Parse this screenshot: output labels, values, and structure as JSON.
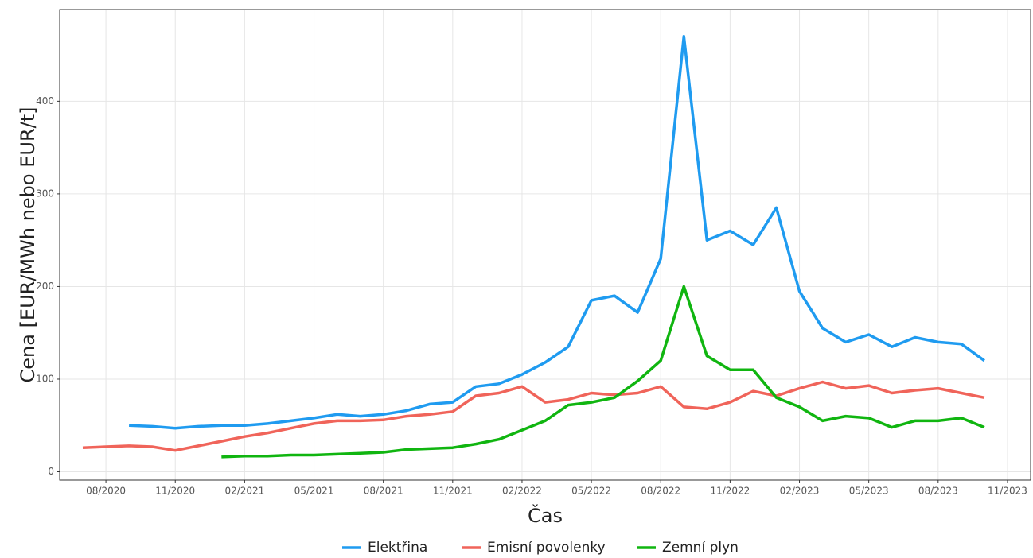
{
  "chart_data": {
    "type": "line",
    "xlabel": "Čas",
    "ylabel": "Cena [EUR/MWh nebo EUR/t]",
    "x": [
      "2020-07",
      "2020-08",
      "2020-09",
      "2020-10",
      "2020-11",
      "2020-12",
      "2021-01",
      "2021-02",
      "2021-03",
      "2021-04",
      "2021-05",
      "2021-06",
      "2021-07",
      "2021-08",
      "2021-09",
      "2021-10",
      "2021-11",
      "2021-12",
      "2022-01",
      "2022-02",
      "2022-03",
      "2022-04",
      "2022-05",
      "2022-06",
      "2022-07",
      "2022-08",
      "2022-09",
      "2022-10",
      "2022-11",
      "2022-12",
      "2023-01",
      "2023-02",
      "2023-03",
      "2023-04",
      "2023-05",
      "2023-06",
      "2023-07",
      "2023-08",
      "2023-09",
      "2023-10"
    ],
    "series": [
      {
        "name": "Elektřina",
        "color": "#1f9bf0",
        "values": [
          null,
          null,
          50,
          49,
          47,
          49,
          50,
          50,
          52,
          55,
          58,
          62,
          60,
          62,
          66,
          73,
          75,
          92,
          95,
          105,
          118,
          135,
          185,
          190,
          172,
          230,
          470,
          250,
          260,
          245,
          285,
          195,
          155,
          140,
          148,
          135,
          145,
          140,
          138,
          120
        ]
      },
      {
        "name": "Emisní povolenky",
        "color": "#f0645a",
        "values": [
          26,
          27,
          28,
          27,
          23,
          28,
          33,
          38,
          42,
          47,
          52,
          55,
          55,
          56,
          60,
          62,
          65,
          82,
          85,
          92,
          75,
          78,
          85,
          83,
          85,
          92,
          70,
          68,
          75,
          87,
          82,
          90,
          97,
          90,
          93,
          85,
          88,
          90,
          85,
          80
        ]
      },
      {
        "name": "Zemní plyn",
        "color": "#10b510",
        "values": [
          null,
          null,
          null,
          null,
          null,
          null,
          16,
          17,
          17,
          18,
          18,
          19,
          20,
          21,
          24,
          25,
          26,
          30,
          35,
          45,
          55,
          72,
          75,
          80,
          98,
          120,
          200,
          125,
          110,
          110,
          80,
          70,
          55,
          60,
          58,
          48,
          55,
          55,
          58,
          48
        ]
      }
    ],
    "xlim": [
      "2020-06",
      "2023-12"
    ],
    "xticks": [
      {
        "value": "2020-08",
        "label": "08/2020"
      },
      {
        "value": "2020-11",
        "label": "11/2020"
      },
      {
        "value": "2021-02",
        "label": "02/2021"
      },
      {
        "value": "2021-05",
        "label": "05/2021"
      },
      {
        "value": "2021-08",
        "label": "08/2021"
      },
      {
        "value": "2021-11",
        "label": "11/2021"
      },
      {
        "value": "2022-02",
        "label": "02/2022"
      },
      {
        "value": "2022-05",
        "label": "05/2022"
      },
      {
        "value": "2022-08",
        "label": "08/2022"
      },
      {
        "value": "2022-11",
        "label": "11/2022"
      },
      {
        "value": "2023-02",
        "label": "02/2023"
      },
      {
        "value": "2023-05",
        "label": "05/2023"
      },
      {
        "value": "2023-08",
        "label": "08/2023"
      },
      {
        "value": "2023-11",
        "label": "11/2023"
      }
    ],
    "ylim": [
      -9,
      499
    ],
    "yticks": [
      0,
      100,
      200,
      300,
      400
    ],
    "grid": true,
    "legend": "bottom"
  }
}
